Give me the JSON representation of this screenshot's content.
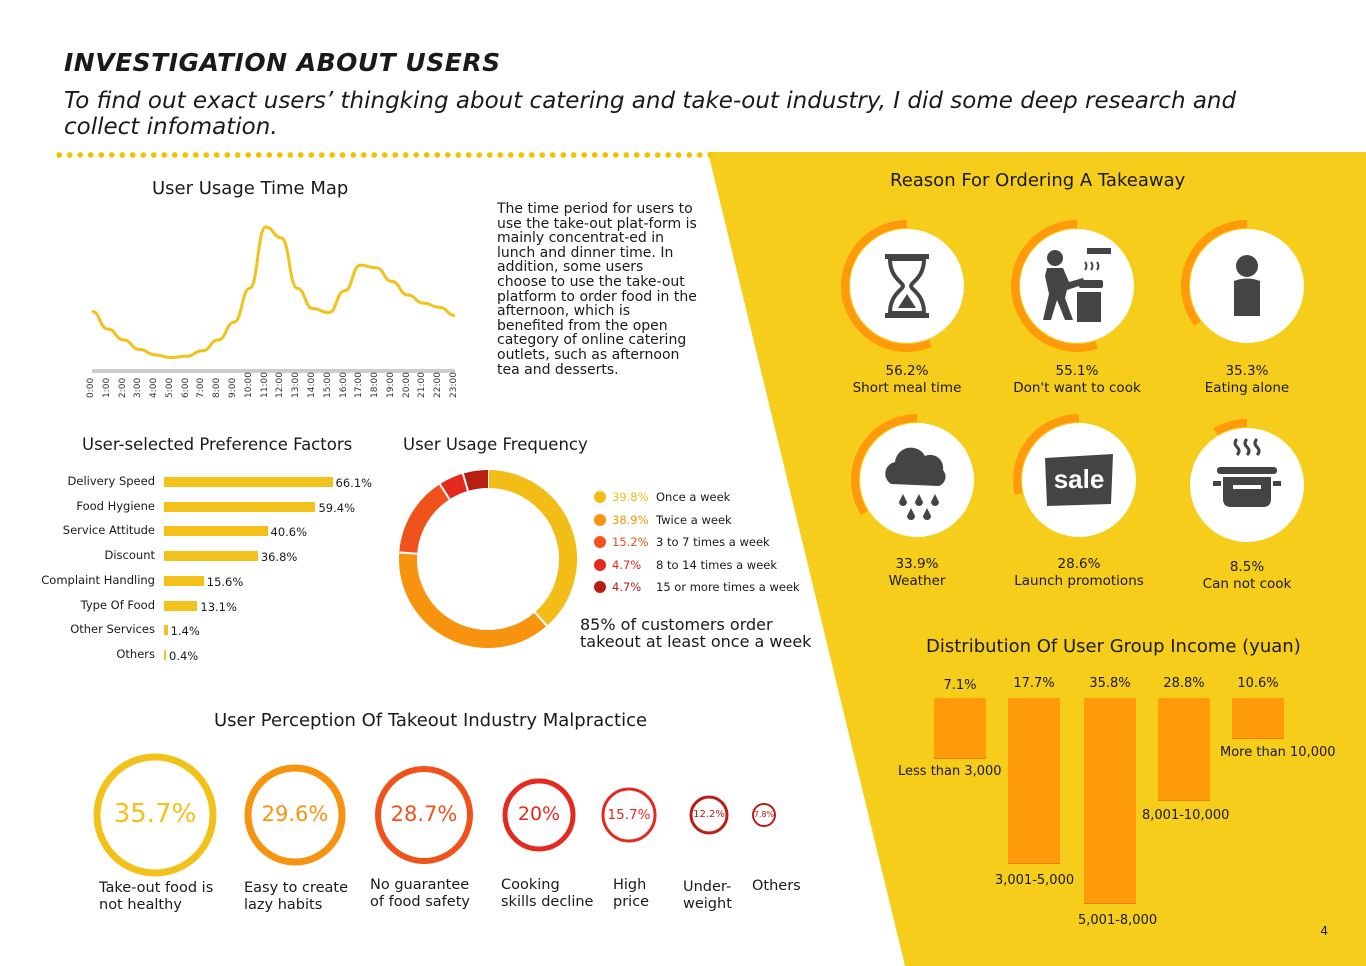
{
  "header": {
    "title": "INVESTIGATION ABOUT USERS",
    "subtitle": "To find out exact users’ thingking about catering and take-out industry, I did some deep research and collect infomation."
  },
  "usage_time": {
    "title": "User Usage Time Map",
    "hours": [
      "0:00",
      "1:00",
      "2:00",
      "3:00",
      "4:00",
      "5:00",
      "6:00",
      "7:00",
      "8:00",
      "9:00",
      "10:00",
      "11:00",
      "12:00",
      "13:00",
      "14:00",
      "15:00",
      "16:00",
      "17:00",
      "18:00",
      "19:00",
      "20:00",
      "21:00",
      "22:00",
      "23:00"
    ],
    "description": "The time period for users to use the take-out plat-form is mainly concentrat-ed in lunch and dinner time. In addition, some users choose to use the take-out platform to order food in the afternoon, which is benefited from the open category of online catering outlets, such as afternoon tea and desserts."
  },
  "chart_data": [
    {
      "type": "line",
      "title": "User Usage Time Map",
      "x": [
        "0:00",
        "1:00",
        "2:00",
        "3:00",
        "4:00",
        "5:00",
        "6:00",
        "7:00",
        "8:00",
        "9:00",
        "10:00",
        "11:00",
        "12:00",
        "13:00",
        "14:00",
        "15:00",
        "16:00",
        "17:00",
        "18:00",
        "19:00",
        "20:00",
        "21:00",
        "22:00",
        "23:00"
      ],
      "values": [
        0.38,
        0.25,
        0.17,
        0.1,
        0.06,
        0.04,
        0.05,
        0.09,
        0.17,
        0.3,
        0.55,
        1.0,
        0.92,
        0.55,
        0.4,
        0.37,
        0.53,
        0.72,
        0.7,
        0.6,
        0.5,
        0.44,
        0.41,
        0.35
      ],
      "color": "#f2c21a"
    },
    {
      "type": "bar",
      "title": "User-selected Preference Factors",
      "categories": [
        "Delivery Speed",
        "Food Hygiene",
        "Service Attitude",
        "Discount",
        "Complaint Handling",
        "Type Of Food",
        "Other Services",
        "Others"
      ],
      "values": [
        66.1,
        59.4,
        40.6,
        36.8,
        15.6,
        13.1,
        1.4,
        0.4
      ],
      "labels": [
        "66.1%",
        "59.4%",
        "40.6%",
        "36.8%",
        "15.6%",
        "13.1%",
        "1.4%",
        "0.4%"
      ],
      "color": "#f2c21a"
    },
    {
      "type": "pie",
      "title": "User Usage Frequency",
      "categories": [
        "Once a week",
        "Twice a week",
        "3 to 7 times a week",
        "8 to 14 times a week",
        "15 or more times a week"
      ],
      "values": [
        39.8,
        38.9,
        15.2,
        4.7,
        4.7
      ],
      "labels": [
        "39.8%",
        "38.9%",
        "15.2%",
        "4.7%",
        "4.7%"
      ],
      "colors": [
        "#f2bd16",
        "#f7930f",
        "#f0521c",
        "#e42a1f",
        "#b81e14"
      ],
      "note": "85% of customers order takeout at least once a week"
    },
    {
      "type": "bar",
      "title": "Distribution Of User Group Income (yuan)",
      "categories": [
        "Less than 3,000",
        "3,001-5,000",
        "5,001-8,000",
        "8,001-10,000",
        "More than 10,000"
      ],
      "values": [
        7.1,
        17.7,
        35.8,
        28.8,
        10.6
      ],
      "labels": [
        "7.1%",
        "17.7%",
        "35.8%",
        "28.8%",
        "10.6%"
      ],
      "color": "#ff9b0a"
    }
  ],
  "preference": {
    "title": "User-selected Preference Factors"
  },
  "frequency": {
    "title": "User Usage Frequency",
    "note": "85% of customers order takeout at least once a week"
  },
  "reasons": {
    "title": "Reason For Ordering A Takeaway",
    "items": [
      {
        "pct": "56.2%",
        "label": "Short meal time",
        "value": 56.2,
        "icon": "hourglass-icon"
      },
      {
        "pct": "55.1%",
        "label": "Don't want to cook",
        "value": 55.1,
        "icon": "cooking-person-icon"
      },
      {
        "pct": "35.3%",
        "label": "Eating alone",
        "value": 35.3,
        "icon": "person-icon"
      },
      {
        "pct": "33.9%",
        "label": "Weather",
        "value": 33.9,
        "icon": "rain-cloud-icon"
      },
      {
        "pct": "28.6%",
        "label": "Launch promotions",
        "value": 28.6,
        "icon": "sale-tag-icon"
      },
      {
        "pct": "8.5%",
        "label": "Can not cook",
        "value": 8.5,
        "icon": "cooking-pot-icon"
      }
    ]
  },
  "income": {
    "title": "Distribution Of User Group Income (yuan)"
  },
  "malpractice": {
    "title": "User Perception Of Takeout Industry Malpractice",
    "items": [
      {
        "pct": "35.7%",
        "label": "Take-out food is\nnot healthy",
        "color": "#f2c21a"
      },
      {
        "pct": "29.6%",
        "label": "Easy to create\nlazy habits",
        "color": "#f7940f"
      },
      {
        "pct": "28.7%",
        "label": "No guarantee\nof food safety",
        "color": "#f0521c"
      },
      {
        "pct": "20%",
        "label": "Cooking\nskills decline",
        "color": "#e42a1f"
      },
      {
        "pct": "15.7%",
        "label": "High\nprice",
        "color": "#e42a1f"
      },
      {
        "pct": "12.2%",
        "label": "Under-\nweight",
        "color": "#b81e14"
      },
      {
        "pct": "7.8%",
        "label": "Others",
        "color": "#b81e14"
      }
    ]
  },
  "page_number": "4",
  "colors": {
    "yellow": "#f5cd1a",
    "orange": "#ff9b0a",
    "accent_yellow": "#f2c21a"
  }
}
